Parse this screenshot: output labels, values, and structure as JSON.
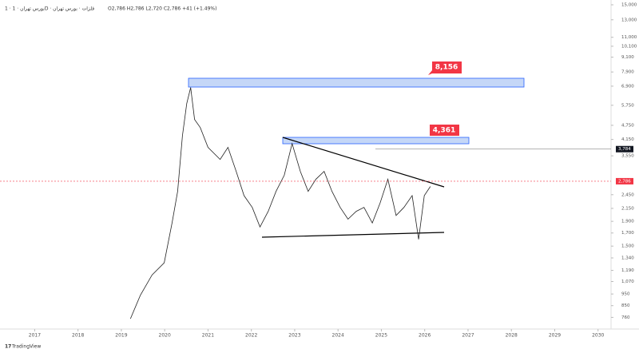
{
  "header": {
    "symbol": "1 · بورس تهران · 1D · فلزات · بورس تهران",
    "ohlc": "O2,786 H2,786 L2,720 C2,786 +41 (+1.49%)"
  },
  "chart_data": {
    "type": "line",
    "log_scale": true,
    "x": [
      2019.21,
      2019.44,
      2019.71,
      2019.99,
      2020.17,
      2020.3,
      2020.41,
      2020.51,
      2020.6,
      2020.69,
      2020.82,
      2021.0,
      2021.28,
      2021.46,
      2021.65,
      2021.83,
      2022.02,
      2022.2,
      2022.39,
      2022.57,
      2022.76,
      2022.94,
      2023.13,
      2023.31,
      2023.49,
      2023.68,
      2023.86,
      2024.05,
      2024.23,
      2024.42,
      2024.6,
      2024.79,
      2024.97,
      2025.15,
      2025.34,
      2025.52,
      2025.71,
      2025.86,
      2025.99,
      2026.13
    ],
    "series": [
      {
        "color": "#222222",
        "values": [
          750,
          940,
          1140,
          1280,
          1870,
          2530,
          4300,
          5850,
          6810,
          5020,
          4650,
          3850,
          3430,
          3850,
          3060,
          2430,
          2170,
          1800,
          2090,
          2530,
          2950,
          3990,
          3060,
          2530,
          2840,
          3060,
          2530,
          2170,
          1940,
          2090,
          2170,
          1870,
          2260,
          2840,
          2010,
          2170,
          2430,
          1600,
          2430,
          2650
        ]
      }
    ],
    "xlim": [
      2016.2,
      2030.3
    ],
    "xticks": [
      2017,
      2018,
      2019,
      2020,
      2021,
      2022,
      2023,
      2024,
      2025,
      2026,
      2027,
      2028,
      2029,
      2030
    ],
    "ylim": [
      680,
      15700
    ],
    "yticks": [
      {
        "value": 15000,
        "label": "15,000"
      },
      {
        "value": 13000,
        "label": "13,000"
      },
      {
        "value": 11000,
        "label": "11,000"
      },
      {
        "value": 10100,
        "label": "10,100"
      },
      {
        "value": 9100,
        "label": "9,100"
      },
      {
        "value": 7900,
        "label": "7,900"
      },
      {
        "value": 6900,
        "label": "6,900"
      },
      {
        "value": 5750,
        "label": "5,750"
      },
      {
        "value": 4750,
        "label": "4,750"
      },
      {
        "value": 4150,
        "label": "4,150"
      },
      {
        "value": 3550,
        "label": "3,550"
      },
      {
        "value": 2450,
        "label": "2,450"
      },
      {
        "value": 2150,
        "label": "2,150"
      },
      {
        "value": 1900,
        "label": "1,900"
      },
      {
        "value": 1700,
        "label": "1,700"
      },
      {
        "value": 1500,
        "label": "1,500"
      },
      {
        "value": 1340,
        "label": "1,340"
      },
      {
        "value": 1190,
        "label": "1,190"
      },
      {
        "value": 1070,
        "label": "1,070"
      },
      950,
      850,
      760
    ],
    "last_price": {
      "value": 2786,
      "label": "2,786",
      "color": "#f23645"
    },
    "level_price": {
      "value": 3784,
      "label": "3,784",
      "color": "#131722"
    },
    "annotations": [
      "8,156",
      "4,361"
    ]
  },
  "footer": {
    "brand": "TradingView"
  }
}
